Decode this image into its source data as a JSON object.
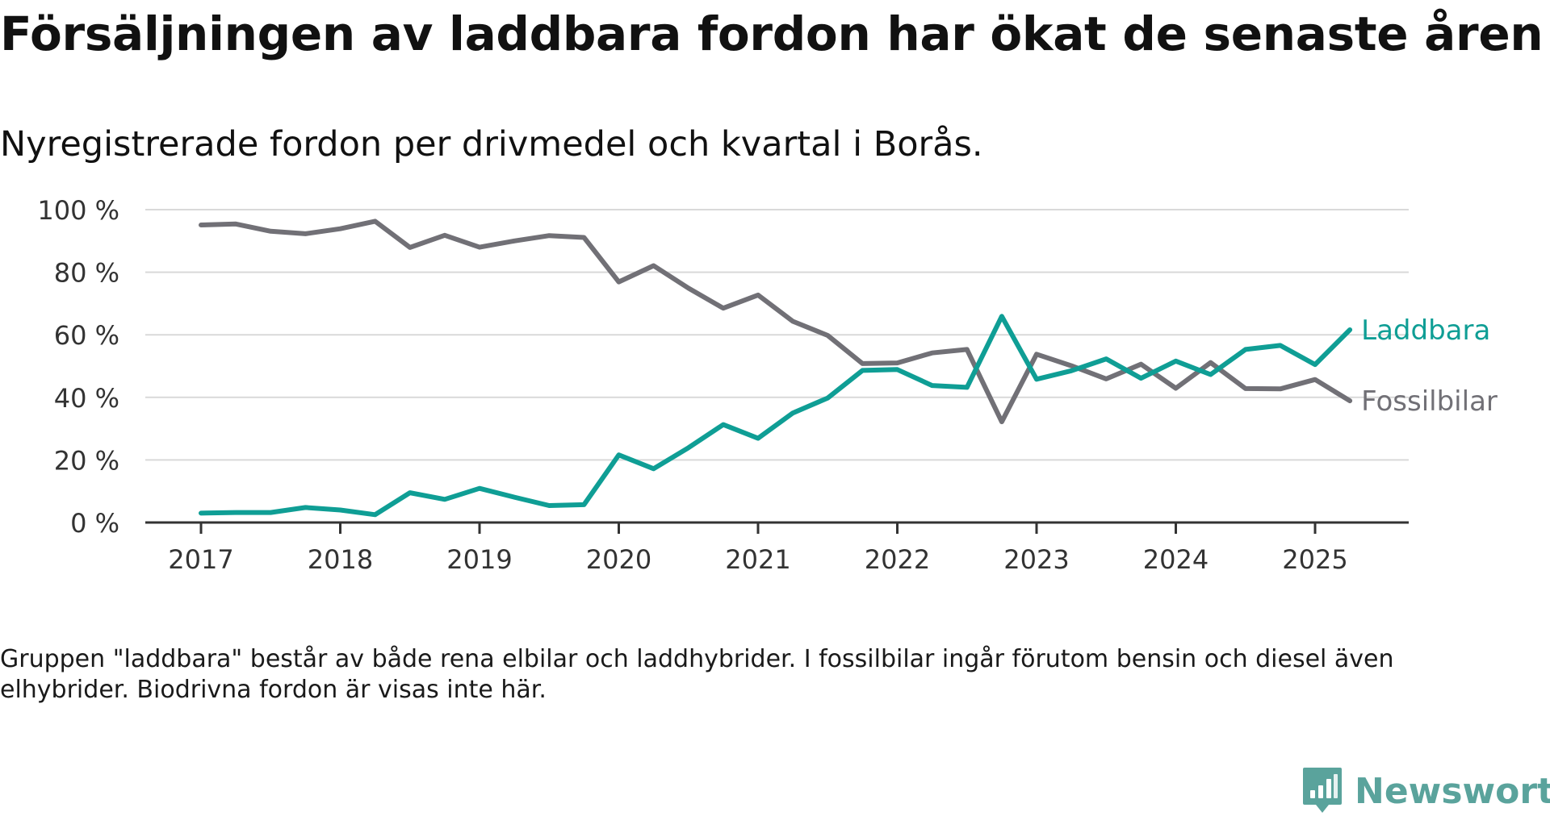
{
  "header": {
    "title": "Försäljningen av laddbara fordon har ökat de senaste åren",
    "subtitle": "Nyregistrerade fordon per drivmedel och kvartal i Borås."
  },
  "footer": {
    "note": "Gruppen \"laddbara\" består av både rena elbilar och laddhybrider. I fossilbilar ingår förutom bensin och diesel även elhybrider. Biodrivna fordon är visas inte här.",
    "brand": "Newsworthy"
  },
  "colors": {
    "laddbara": "#0f9e95",
    "fossilbilar": "#717076",
    "grid": "#d9d9d9",
    "axis": "#333333",
    "tick_text": "#333333",
    "brand": "#5aa39c"
  },
  "icons": {
    "brand_logo": "newsworthy-logo-icon"
  },
  "chart_data": {
    "type": "line",
    "x_unit": "quarter",
    "x": [
      "2017-Q1",
      "2017-Q2",
      "2017-Q3",
      "2017-Q4",
      "2018-Q1",
      "2018-Q2",
      "2018-Q3",
      "2018-Q4",
      "2019-Q1",
      "2019-Q2",
      "2019-Q3",
      "2019-Q4",
      "2020-Q1",
      "2020-Q2",
      "2020-Q3",
      "2020-Q4",
      "2021-Q1",
      "2021-Q2",
      "2021-Q3",
      "2021-Q4",
      "2022-Q1",
      "2022-Q2",
      "2022-Q3",
      "2022-Q4",
      "2023-Q1",
      "2023-Q2",
      "2023-Q3",
      "2023-Q4",
      "2024-Q1",
      "2024-Q2",
      "2024-Q3",
      "2024-Q4",
      "2025-Q1",
      "2025-Q2"
    ],
    "series": [
      {
        "name": "Laddbara",
        "color": "#0f9e95",
        "values": [
          3.0,
          3.2,
          3.2,
          4.8,
          4.0,
          2.5,
          9.5,
          7.4,
          10.9,
          8.1,
          5.4,
          5.7,
          21.6,
          17.2,
          23.9,
          31.3,
          26.9,
          35.0,
          39.8,
          48.6,
          48.9,
          43.8,
          43.2,
          65.9,
          45.8,
          48.5,
          52.3,
          46.1,
          51.6,
          47.3,
          55.3,
          56.6,
          50.5,
          61.6
        ]
      },
      {
        "name": "Fossilbilar",
        "color": "#717076",
        "values": [
          95.1,
          95.4,
          93.1,
          92.3,
          93.9,
          96.3,
          87.9,
          91.8,
          88.0,
          90.0,
          91.7,
          91.1,
          76.9,
          82.1,
          74.9,
          68.5,
          72.7,
          64.3,
          59.8,
          50.8,
          51.0,
          54.2,
          55.3,
          32.2,
          53.8,
          50.1,
          45.9,
          50.6,
          42.9,
          51.1,
          42.8,
          42.7,
          45.7,
          38.9
        ]
      }
    ],
    "x_ticks": [
      "2017",
      "2018",
      "2019",
      "2020",
      "2021",
      "2022",
      "2023",
      "2024",
      "2025"
    ],
    "y_ticks": [
      "0 %",
      "20 %",
      "40 %",
      "60 %",
      "80 %",
      "100 %"
    ],
    "ylim": [
      0,
      100
    ],
    "grid": true,
    "legend": "inline labels at line ends (right)"
  }
}
